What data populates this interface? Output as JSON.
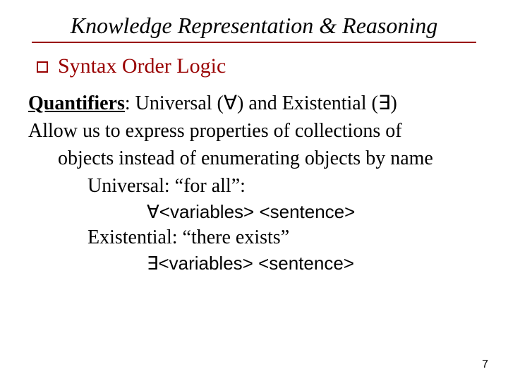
{
  "colors": {
    "text": "#000000",
    "accent": "#990000",
    "underline": "#990000",
    "background": "#ffffff"
  },
  "title": "Knowledge Representation & Reasoning",
  "bullet": {
    "label": "Syntax Order Logic"
  },
  "body": {
    "quantifiers_label": "Quantifiers",
    "quantifiers_rest": ": Universal (∀) and Existential (∃)",
    "para_first": "Allow us to express properties of collections of",
    "para_rest": "objects instead of enumerating objects by name",
    "universal_label": "Universal: “for all”:",
    "universal_formula_sym": "∀",
    "universal_formula_rest": "<variables> <sentence>",
    "existential_label": "Existential: “there exists”",
    "existential_formula_sym": "∃",
    "existential_formula_rest": "<variables> <sentence>"
  },
  "page_number": "7"
}
